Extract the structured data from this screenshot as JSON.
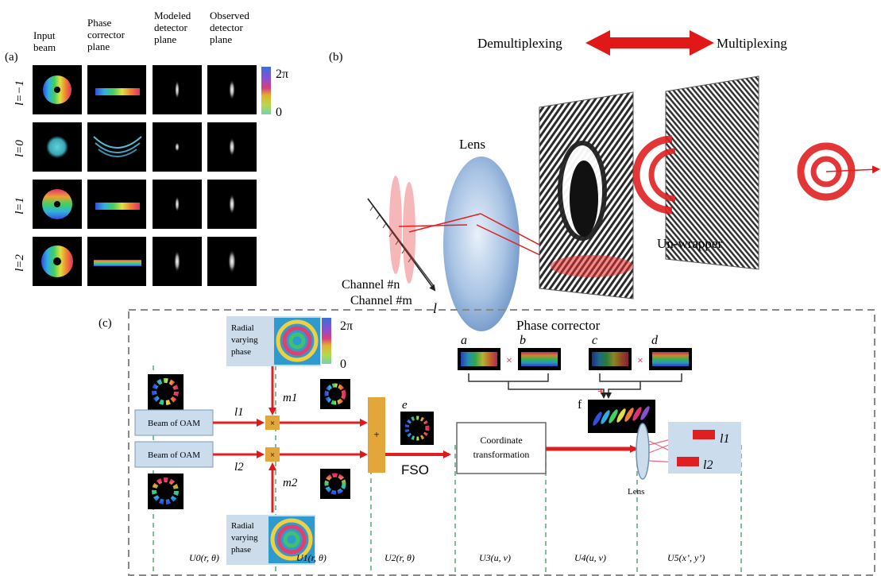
{
  "panel_a": {
    "label": "(a)",
    "col_headers": [
      [
        "Input",
        "beam"
      ],
      [
        "Phase",
        "corrector",
        "plane"
      ],
      [
        "Modeled",
        "detector",
        "plane"
      ],
      [
        "Observed",
        "detector",
        "plane"
      ]
    ],
    "row_labels": [
      "l=−1",
      "l=0",
      "l=1",
      "l=2"
    ],
    "colorbar": {
      "top": "2π",
      "bottom": "0"
    }
  },
  "panel_b": {
    "label": "(b)",
    "demux": "Demultiplexing",
    "mux": "Multiplexing",
    "lens": "Lens",
    "phase_corrector": "Phase corrector",
    "unwrapper": "Un-wrapper",
    "channel_n": "Channel #n",
    "channel_m": "Channel #m",
    "l_axis": "l"
  },
  "panel_c": {
    "label": "(c)",
    "radial_phase": [
      "Radial",
      "varying",
      "phase"
    ],
    "colorbar": {
      "top": "2π",
      "bottom": "0"
    },
    "beam_label": "Beam of OAM",
    "l1": "l1",
    "l2": "l2",
    "m1": "m1",
    "m2": "m2",
    "mult": "×",
    "plus": "+",
    "e": "e",
    "f": "f",
    "a": "a",
    "b": "b",
    "c": "c",
    "d": "d",
    "fso": "FSO",
    "coord": [
      "Coordinate",
      "transformation"
    ],
    "lens": "Lens",
    "out_l1": "l1",
    "out_l2": "l2",
    "planes": [
      "U0(r, θ)",
      "U1(r, θ)",
      "U2(r, θ)",
      "U3(u, v)",
      "U4(u, v)",
      "U5(x’, y’)"
    ]
  }
}
